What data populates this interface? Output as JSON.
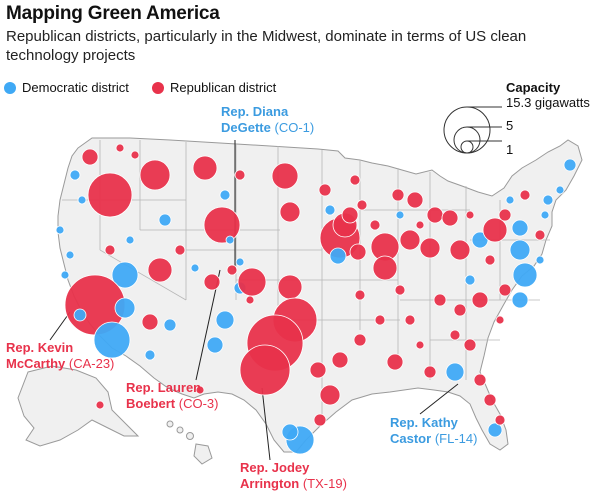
{
  "header": {
    "title": "Mapping Green America",
    "subtitle": "Republican districts, particularly in the Midwest, dominate in terms of US clean technology projects"
  },
  "legend": {
    "democratic": {
      "label": "Democratic district",
      "color": "#3fa9f5"
    },
    "republican": {
      "label": "Republican district",
      "color": "#e8324b"
    }
  },
  "capacity_legend": {
    "title": "Capacity",
    "max_label": "15.3 gigawatts",
    "mid_label": "5",
    "min_label": "1"
  },
  "callouts": {
    "degette": {
      "name": "Rep. Diana",
      "name2": "DeGette",
      "district": "(CO-1)"
    },
    "mccarthy": {
      "name": "Rep. Kevin",
      "name2": "McCarthy",
      "district": "(CA-23)"
    },
    "boebert": {
      "name": "Rep. Lauren",
      "name2": "Boebert",
      "district": "(CO-3)"
    },
    "arrington": {
      "name": "Rep. Jodey",
      "name2": "Arrington",
      "district": "(TX-19)"
    },
    "castor": {
      "name": "Rep. Kathy",
      "name2": "Castor",
      "district": "(FL-14)"
    }
  }
}
